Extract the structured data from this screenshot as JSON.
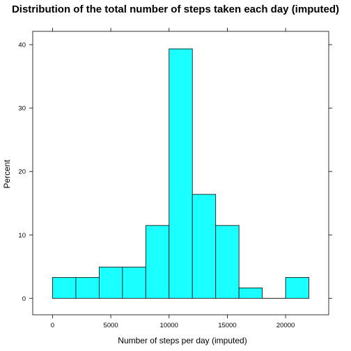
{
  "chart_data": {
    "type": "bar",
    "title": "Distribution of the total number of steps taken each day (imputed)",
    "xlabel": "Number of steps per day (imputed)",
    "ylabel": "Percent",
    "xlim": [
      -1700,
      23700
    ],
    "ylim": [
      -2.6,
      42.1
    ],
    "x_ticks": [
      0,
      5000,
      10000,
      15000,
      20000
    ],
    "y_ticks": [
      0,
      10,
      20,
      30,
      40
    ],
    "bin_edges": [
      0,
      2000,
      4000,
      6000,
      8000,
      10000,
      12000,
      14000,
      16000,
      18000,
      20000,
      22000
    ],
    "values": [
      3.28,
      3.28,
      4.92,
      4.92,
      11.48,
      39.34,
      16.39,
      11.48,
      1.64,
      0,
      3.28
    ],
    "bar_color": "#1affff",
    "edge_color": "#000000",
    "grid": false
  }
}
